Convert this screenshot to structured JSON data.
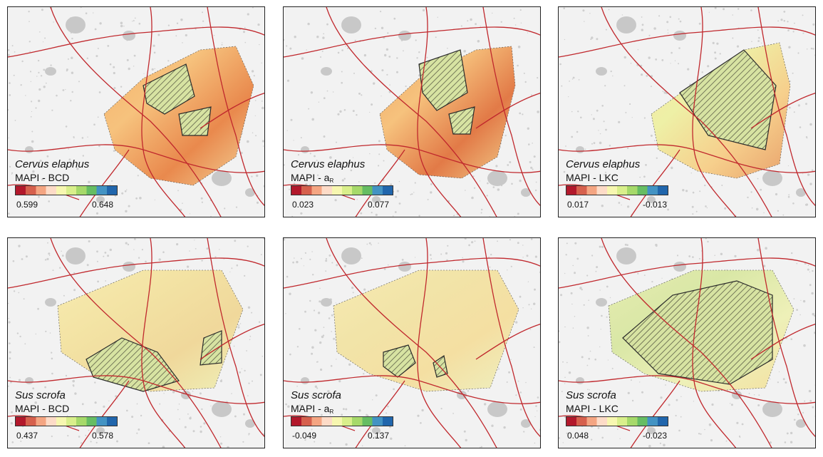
{
  "panels": [
    {
      "species": "Cervus elaphus",
      "metric_prefix": "MAPI - ",
      "metric": "BCD",
      "metric_sub": "",
      "min": "0.599",
      "max": "0.648",
      "ramp": "rdylbu",
      "variant": "ce1"
    },
    {
      "species": "Cervus elaphus",
      "metric_prefix": "MAPI - ",
      "metric": "a",
      "metric_sub": "R",
      "min": "0.023",
      "max": "0.077",
      "ramp": "rdylbu",
      "variant": "ce2"
    },
    {
      "species": "Cervus elaphus",
      "metric_prefix": "MAPI - ",
      "metric": "LKC",
      "metric_sub": "",
      "min": "0.017",
      "max": "-0.013",
      "ramp": "rdylbu",
      "variant": "ce3"
    },
    {
      "species": "Sus scrofa",
      "metric_prefix": "MAPI - ",
      "metric": "BCD",
      "metric_sub": "",
      "min": "0.437",
      "max": "0.578",
      "ramp": "rdylbu",
      "variant": "ss1"
    },
    {
      "species": "Sus scrofa",
      "metric_prefix": "MAPI - ",
      "metric": "a",
      "metric_sub": "R",
      "min": "-0.049",
      "max": "0.137",
      "ramp": "rdylbu",
      "variant": "ss2"
    },
    {
      "species": "Sus scrofa",
      "metric_prefix": "MAPI - ",
      "metric": "LKC",
      "metric_sub": "",
      "min": "0.048",
      "max": "-0.023",
      "ramp": "rdylbu",
      "variant": "ss3"
    }
  ],
  "colors": {
    "background": "#f2f2f2",
    "urban": "#c8c8c8",
    "roads": "#c0282d",
    "ramp": [
      "#b2182b",
      "#d6604d",
      "#f4a582",
      "#fddbc7",
      "#f7f7b0",
      "#d9ef8b",
      "#a6d96a",
      "#66bd63",
      "#4393c3",
      "#2166ac"
    ]
  }
}
